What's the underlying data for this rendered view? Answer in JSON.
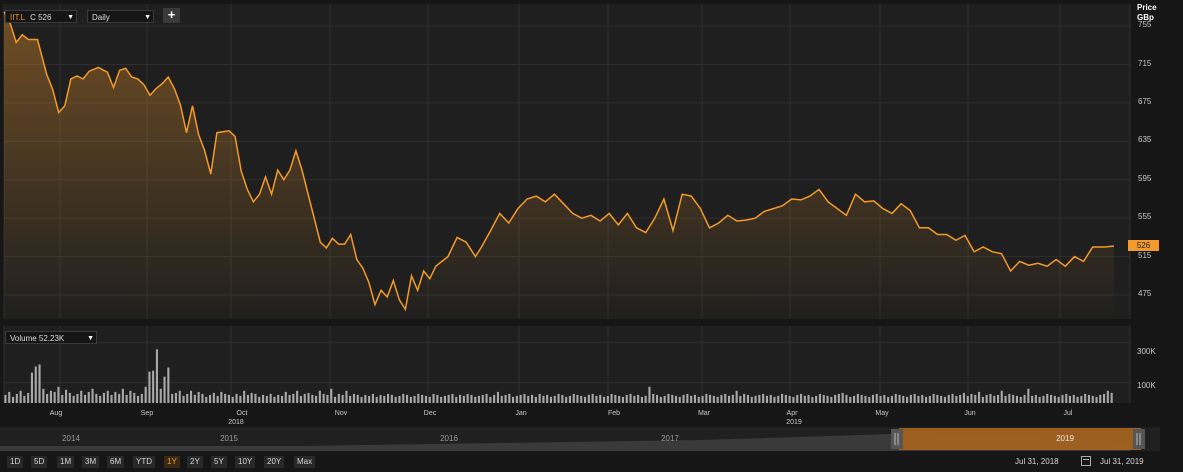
{
  "toolbar": {
    "symbol": "IIT.L",
    "close_label": "C 526",
    "interval": "Daily",
    "add_icon": "plus-icon"
  },
  "price_axis": {
    "title": "Price",
    "currency": "GBp",
    "last_value": "526"
  },
  "volume_panel": {
    "label": "Volume 52.23K",
    "tick_labels": [
      "300K",
      "100K"
    ]
  },
  "timeline": {
    "months": [
      "Aug",
      "Sep",
      "Oct",
      "Nov",
      "Dec",
      "Jan",
      "Feb",
      "Mar",
      "Apr",
      "May",
      "Jun",
      "Jul"
    ],
    "years": [
      "2018",
      "2019"
    ]
  },
  "navigator": {
    "years": [
      "2014",
      "2015",
      "2016",
      "2017",
      "2019"
    ]
  },
  "ranges": [
    "1D",
    "5D",
    "1M",
    "3M",
    "6M",
    "YTD",
    "1Y",
    "2Y",
    "5Y",
    "10Y",
    "20Y",
    "Max"
  ],
  "active_range": "1Y",
  "dates": {
    "from": "Jul 31, 2018",
    "to": "Jul 31, 2019"
  },
  "colors": {
    "line": "#f39a2b",
    "background": "#1f1f1f",
    "grid": "#2f2f2f",
    "volume": "#a8a8a8"
  },
  "chart_data": [
    {
      "type": "line",
      "series": [
        {
          "name": "IIT.L",
          "points": [
            [
              "2018-07-31",
              770
            ],
            [
              "2018-08-02",
              758
            ],
            [
              "2018-08-04",
              738
            ],
            [
              "2018-08-06",
              746
            ],
            [
              "2018-08-08",
              741
            ],
            [
              "2018-08-11",
              741
            ],
            [
              "2018-08-14",
              705
            ],
            [
              "2018-08-16",
              689
            ],
            [
              "2018-08-18",
              665
            ],
            [
              "2018-08-20",
              672
            ],
            [
              "2018-08-22",
              700
            ],
            [
              "2018-08-24",
              703
            ],
            [
              "2018-08-26",
              700
            ],
            [
              "2018-08-28",
              708
            ],
            [
              "2018-08-31",
              712
            ],
            [
              "2018-09-03",
              707
            ],
            [
              "2018-09-05",
              691
            ],
            [
              "2018-09-07",
              709
            ],
            [
              "2018-09-09",
              711
            ],
            [
              "2018-09-11",
              702
            ],
            [
              "2018-09-13",
              700
            ],
            [
              "2018-09-15",
              694
            ],
            [
              "2018-09-17",
              683
            ],
            [
              "2018-09-19",
              690
            ],
            [
              "2018-09-21",
              695
            ],
            [
              "2018-09-23",
              702
            ],
            [
              "2018-09-25",
              690
            ],
            [
              "2018-09-27",
              673
            ],
            [
              "2018-09-29",
              644
            ],
            [
              "2018-10-01",
              672
            ],
            [
              "2018-10-03",
              642
            ],
            [
              "2018-10-05",
              625
            ],
            [
              "2018-10-07",
              601
            ],
            [
              "2018-10-09",
              644
            ],
            [
              "2018-10-11",
              645
            ],
            [
              "2018-10-13",
              646
            ],
            [
              "2018-10-15",
              640
            ],
            [
              "2018-10-17",
              604
            ],
            [
              "2018-10-19",
              585
            ],
            [
              "2018-10-21",
              572
            ],
            [
              "2018-10-23",
              580
            ],
            [
              "2018-10-25",
              598
            ],
            [
              "2018-10-27",
              580
            ],
            [
              "2018-10-29",
              605
            ],
            [
              "2018-10-31",
              595
            ],
            [
              "2018-11-02",
              605
            ],
            [
              "2018-11-04",
              625
            ],
            [
              "2018-11-06",
              605
            ],
            [
              "2018-11-08",
              580
            ],
            [
              "2018-11-10",
              555
            ],
            [
              "2018-11-12",
              530
            ],
            [
              "2018-11-14",
              524
            ],
            [
              "2018-11-16",
              534
            ],
            [
              "2018-11-18",
              528
            ],
            [
              "2018-11-20",
              528
            ],
            [
              "2018-11-22",
              538
            ],
            [
              "2018-11-24",
              512
            ],
            [
              "2018-11-26",
              503
            ],
            [
              "2018-11-28",
              488
            ],
            [
              "2018-11-30",
              465
            ],
            [
              "2018-12-02",
              480
            ],
            [
              "2018-12-04",
              473
            ],
            [
              "2018-12-06",
              490
            ],
            [
              "2018-12-08",
              470
            ],
            [
              "2018-12-10",
              460
            ],
            [
              "2018-12-12",
              495
            ],
            [
              "2018-12-14",
              480
            ],
            [
              "2018-12-16",
              500
            ],
            [
              "2018-12-18",
              492
            ],
            [
              "2018-12-20",
              505
            ],
            [
              "2018-12-22",
              510
            ],
            [
              "2018-12-24",
              515
            ],
            [
              "2018-12-27",
              535
            ],
            [
              "2018-12-30",
              530
            ],
            [
              "2019-01-02",
              515
            ],
            [
              "2019-01-04",
              525
            ],
            [
              "2019-01-07",
              542
            ],
            [
              "2019-01-10",
              560
            ],
            [
              "2019-01-13",
              550
            ],
            [
              "2019-01-16",
              565
            ],
            [
              "2019-01-19",
              575
            ],
            [
              "2019-01-22",
              578
            ],
            [
              "2019-01-25",
              572
            ],
            [
              "2019-01-28",
              580
            ],
            [
              "2019-01-31",
              570
            ],
            [
              "2019-02-03",
              560
            ],
            [
              "2019-02-06",
              555
            ],
            [
              "2019-02-09",
              558
            ],
            [
              "2019-02-12",
              552
            ],
            [
              "2019-02-15",
              560
            ],
            [
              "2019-02-18",
              548
            ],
            [
              "2019-02-21",
              560
            ],
            [
              "2019-02-24",
              545
            ],
            [
              "2019-02-27",
              540
            ],
            [
              "2019-03-02",
              555
            ],
            [
              "2019-03-05",
              575
            ],
            [
              "2019-03-08",
              542
            ],
            [
              "2019-03-11",
              580
            ],
            [
              "2019-03-14",
              578
            ],
            [
              "2019-03-17",
              565
            ],
            [
              "2019-03-20",
              545
            ],
            [
              "2019-03-23",
              550
            ],
            [
              "2019-03-26",
              558
            ],
            [
              "2019-03-29",
              552
            ],
            [
              "2019-04-01",
              553
            ],
            [
              "2019-04-04",
              555
            ],
            [
              "2019-04-07",
              562
            ],
            [
              "2019-04-10",
              565
            ],
            [
              "2019-04-13",
              568
            ],
            [
              "2019-04-16",
              575
            ],
            [
              "2019-04-19",
              574
            ],
            [
              "2019-04-22",
              578
            ],
            [
              "2019-04-25",
              585
            ],
            [
              "2019-04-28",
              572
            ],
            [
              "2019-05-01",
              565
            ],
            [
              "2019-05-04",
              558
            ],
            [
              "2019-05-07",
              580
            ],
            [
              "2019-05-10",
              572
            ],
            [
              "2019-05-13",
              573
            ],
            [
              "2019-05-16",
              565
            ],
            [
              "2019-05-19",
              560
            ],
            [
              "2019-05-22",
              570
            ],
            [
              "2019-05-25",
              563
            ],
            [
              "2019-05-28",
              545
            ],
            [
              "2019-05-31",
              545
            ],
            [
              "2019-06-03",
              538
            ],
            [
              "2019-06-06",
              538
            ],
            [
              "2019-06-09",
              532
            ],
            [
              "2019-06-12",
              537
            ],
            [
              "2019-06-15",
              520
            ],
            [
              "2019-06-18",
              525
            ],
            [
              "2019-06-21",
              520
            ],
            [
              "2019-06-24",
              518
            ],
            [
              "2019-06-27",
              500
            ],
            [
              "2019-06-30",
              510
            ],
            [
              "2019-07-03",
              506
            ],
            [
              "2019-07-06",
              508
            ],
            [
              "2019-07-09",
              505
            ],
            [
              "2019-07-12",
              512
            ],
            [
              "2019-07-15",
              505
            ],
            [
              "2019-07-18",
              515
            ],
            [
              "2019-07-21",
              510
            ],
            [
              "2019-07-24",
              525
            ],
            [
              "2019-07-28",
              525
            ],
            [
              "2019-07-31",
              526
            ]
          ]
        }
      ],
      "xlabel": "",
      "ylabel": "Price GBp",
      "yticks": [
        475,
        515,
        555,
        595,
        635,
        675,
        715,
        755
      ],
      "ylim": [
        450,
        778
      ],
      "grid": true
    },
    {
      "type": "bar",
      "series": [
        {
          "name": "Volume",
          "values": [
            40,
            55,
            30,
            45,
            60,
            35,
            50,
            150,
            180,
            190,
            70,
            45,
            60,
            55,
            80,
            40,
            65,
            50,
            35,
            45,
            60,
            40,
            55,
            70,
            45,
            35,
            50,
            60,
            40,
            55,
            45,
            70,
            40,
            60,
            50,
            35,
            45,
            80,
            155,
            160,
            265,
            70,
            130,
            175,
            45,
            50,
            60,
            35,
            45,
            60,
            40,
            55,
            45,
            30,
            40,
            50,
            35,
            55,
            45,
            40,
            30,
            45,
            35,
            60,
            40,
            50,
            45,
            30,
            40,
            35,
            45,
            30,
            40,
            35,
            55,
            40,
            45,
            60,
            35,
            45,
            50,
            40,
            35,
            60,
            45,
            40,
            70,
            30,
            45,
            40,
            60,
            35,
            45,
            40,
            30,
            40,
            35,
            45,
            30,
            40,
            35,
            45,
            40,
            30,
            35,
            45,
            40,
            30,
            35,
            45,
            40,
            35,
            30,
            45,
            40,
            30,
            35,
            40,
            45,
            30,
            40,
            35,
            45,
            40,
            30,
            35,
            40,
            45,
            30,
            40,
            55,
            35,
            40,
            45,
            30,
            35,
            40,
            45,
            35,
            40,
            30,
            45,
            35,
            40,
            30,
            35,
            45,
            40,
            30,
            35,
            45,
            40,
            35,
            30,
            40,
            45,
            35,
            40,
            30,
            35,
            45,
            40,
            35,
            30,
            40,
            45,
            35,
            40,
            30,
            35,
            80,
            45,
            40,
            30,
            35,
            45,
            40,
            35,
            30,
            40,
            45,
            35,
            40,
            30,
            35,
            45,
            40,
            35,
            30,
            40,
            45,
            35,
            40,
            60,
            35,
            45,
            40,
            30,
            35,
            40,
            45,
            35,
            40,
            30,
            35,
            45,
            40,
            35,
            30,
            40,
            45,
            35,
            40,
            30,
            35,
            45,
            40,
            35,
            30,
            40,
            45,
            50,
            40,
            30,
            35,
            45,
            40,
            35,
            30,
            40,
            45,
            35,
            40,
            30,
            35,
            45,
            40,
            35,
            30,
            40,
            45,
            35,
            40,
            30,
            35,
            45,
            40,
            35,
            30,
            40,
            45,
            35,
            40,
            50,
            35,
            45,
            40,
            55,
            30,
            40,
            45,
            35,
            40,
            60,
            35,
            45,
            40,
            35,
            30,
            40,
            70,
            35,
            40,
            30,
            35,
            45,
            40,
            35,
            30,
            40,
            45,
            35,
            40,
            30,
            35,
            45,
            40,
            35,
            30,
            40,
            45,
            60,
            50
          ]
        }
      ],
      "yticks": [
        "300K",
        "100K"
      ],
      "ylim": [
        0,
        380
      ],
      "grid": true
    }
  ]
}
